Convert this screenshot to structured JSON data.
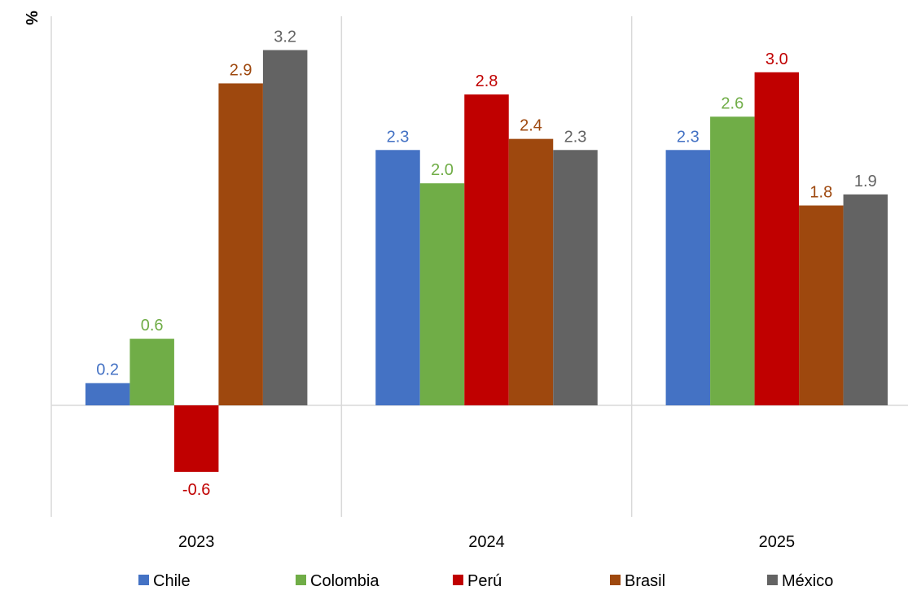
{
  "chart_data": {
    "type": "bar",
    "ylabel": "%",
    "categories": [
      "2023",
      "2024",
      "2025"
    ],
    "series": [
      {
        "name": "Chile",
        "color": "#4472C4",
        "values": [
          0.2,
          2.3,
          2.3
        ]
      },
      {
        "name": "Colombia",
        "color": "#70AD47",
        "values": [
          0.6,
          2.0,
          2.6
        ]
      },
      {
        "name": "Perú",
        "color": "#C00000",
        "values": [
          -0.6,
          2.8,
          3.0
        ]
      },
      {
        "name": "Brasil",
        "color": "#9E480E",
        "values": [
          2.9,
          2.4,
          1.8
        ]
      },
      {
        "name": "México",
        "color": "#636363",
        "values": [
          3.2,
          2.3,
          1.9
        ]
      }
    ],
    "ylim": [
      -1.0,
      3.5
    ],
    "grid": false,
    "legend_position": "bottom",
    "data_labels": true
  }
}
